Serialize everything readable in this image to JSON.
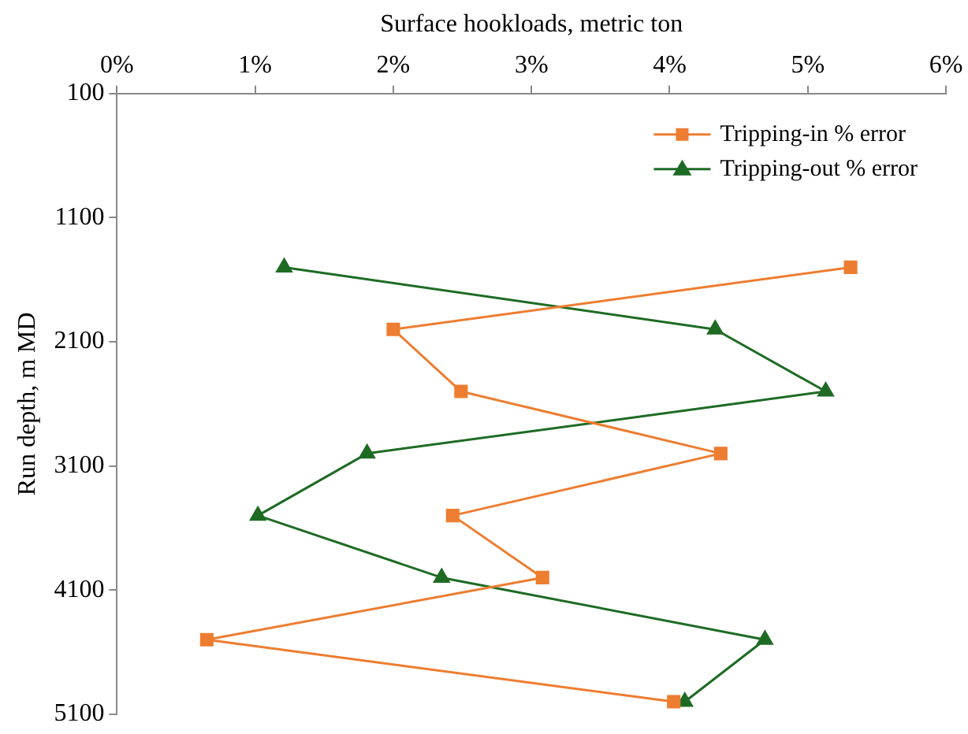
{
  "chart_data": {
    "type": "line",
    "xlabel": "Surface hookloads, metric ton",
    "ylabel": "Run depth, m MD",
    "xlim": [
      0,
      6
    ],
    "xticks": [
      {
        "value": 0,
        "label": "0%"
      },
      {
        "value": 1,
        "label": "1%"
      },
      {
        "value": 2,
        "label": "2%"
      },
      {
        "value": 3,
        "label": "3%"
      },
      {
        "value": 4,
        "label": "4%"
      },
      {
        "value": 5,
        "label": "5%"
      },
      {
        "value": 6,
        "label": "6%"
      }
    ],
    "ylim": [
      5100,
      100
    ],
    "yticks": [
      100,
      1100,
      2100,
      3100,
      4100,
      5100
    ],
    "grid": false,
    "legend": "top right",
    "series": [
      {
        "name": "Tripping-in % error",
        "color": "#ed7d31",
        "marker": "square",
        "x": [
          5.31,
          2.0,
          2.49,
          4.37,
          2.43,
          3.08,
          0.65,
          4.03
        ],
        "values": [
          1500,
          2000,
          2500,
          3000,
          3500,
          4000,
          4500,
          5000
        ]
      },
      {
        "name": "Tripping-out % error",
        "color": "#1e6b24",
        "marker": "triangle",
        "x": [
          1.21,
          4.33,
          5.13,
          1.81,
          1.02,
          2.35,
          4.69,
          4.11
        ],
        "values": [
          1500,
          2000,
          2500,
          3000,
          3500,
          4000,
          4500,
          5000
        ]
      }
    ]
  }
}
